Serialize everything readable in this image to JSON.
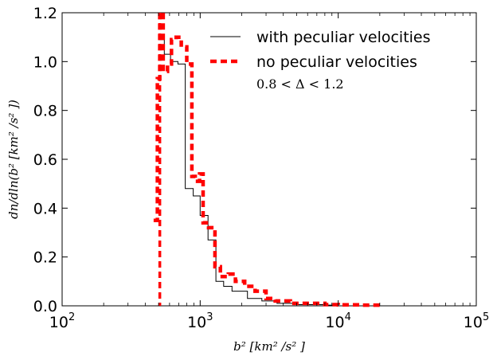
{
  "chart_data": {
    "type": "line",
    "xscale": "log",
    "xlim": [
      100,
      100000
    ],
    "ylim": [
      0,
      1.2
    ],
    "xlabel": "b² [km² /s² ]",
    "ylabel": "dn/dln(b² [km² /s² ])",
    "xticks": [
      {
        "value": 100,
        "base": "10",
        "exp": "2"
      },
      {
        "value": 1000,
        "base": "10",
        "exp": "3"
      },
      {
        "value": 10000,
        "base": "10",
        "exp": "4"
      },
      {
        "value": 100000,
        "base": "10",
        "exp": "5"
      }
    ],
    "yticks": [
      "0.0",
      "0.2",
      "0.4",
      "0.6",
      "0.8",
      "1.0",
      "1.2"
    ],
    "annotation": "0.8 < Δ < 1.2",
    "legend_position": "top-right",
    "series": [
      {
        "name": "with peculiar velocities",
        "color": "#000000",
        "style": "solid-step",
        "bin_edges": [
          500,
          550,
          610,
          690,
          780,
          890,
          1000,
          1140,
          1300,
          1480,
          1700,
          2200,
          2800,
          3600,
          5000,
          8000,
          10000
        ],
        "values": [
          1.09,
          1.03,
          1.0,
          0.99,
          0.48,
          0.45,
          0.37,
          0.27,
          0.1,
          0.08,
          0.06,
          0.03,
          0.02,
          0.01,
          0.005,
          0.003
        ]
      },
      {
        "name": "no peculiar velocities",
        "color": "#ff0000",
        "style": "dashed-step",
        "bin_edges": [
          460,
          490,
          510,
          540,
          580,
          620,
          670,
          730,
          800,
          870,
          920,
          990,
          1050,
          1150,
          1280,
          1400,
          1600,
          1800,
          2100,
          2500,
          3000,
          3500,
          4500,
          6000,
          8000,
          10000,
          15000,
          21000
        ],
        "values": [
          0.35,
          0.93,
          1.2,
          0.96,
          0.99,
          1.09,
          1.1,
          1.06,
          0.99,
          0.53,
          0.51,
          0.54,
          0.34,
          0.32,
          0.16,
          0.12,
          0.13,
          0.1,
          0.08,
          0.06,
          0.03,
          0.02,
          0.01,
          0.01,
          0.005,
          0.004,
          0.003
        ]
      }
    ]
  }
}
